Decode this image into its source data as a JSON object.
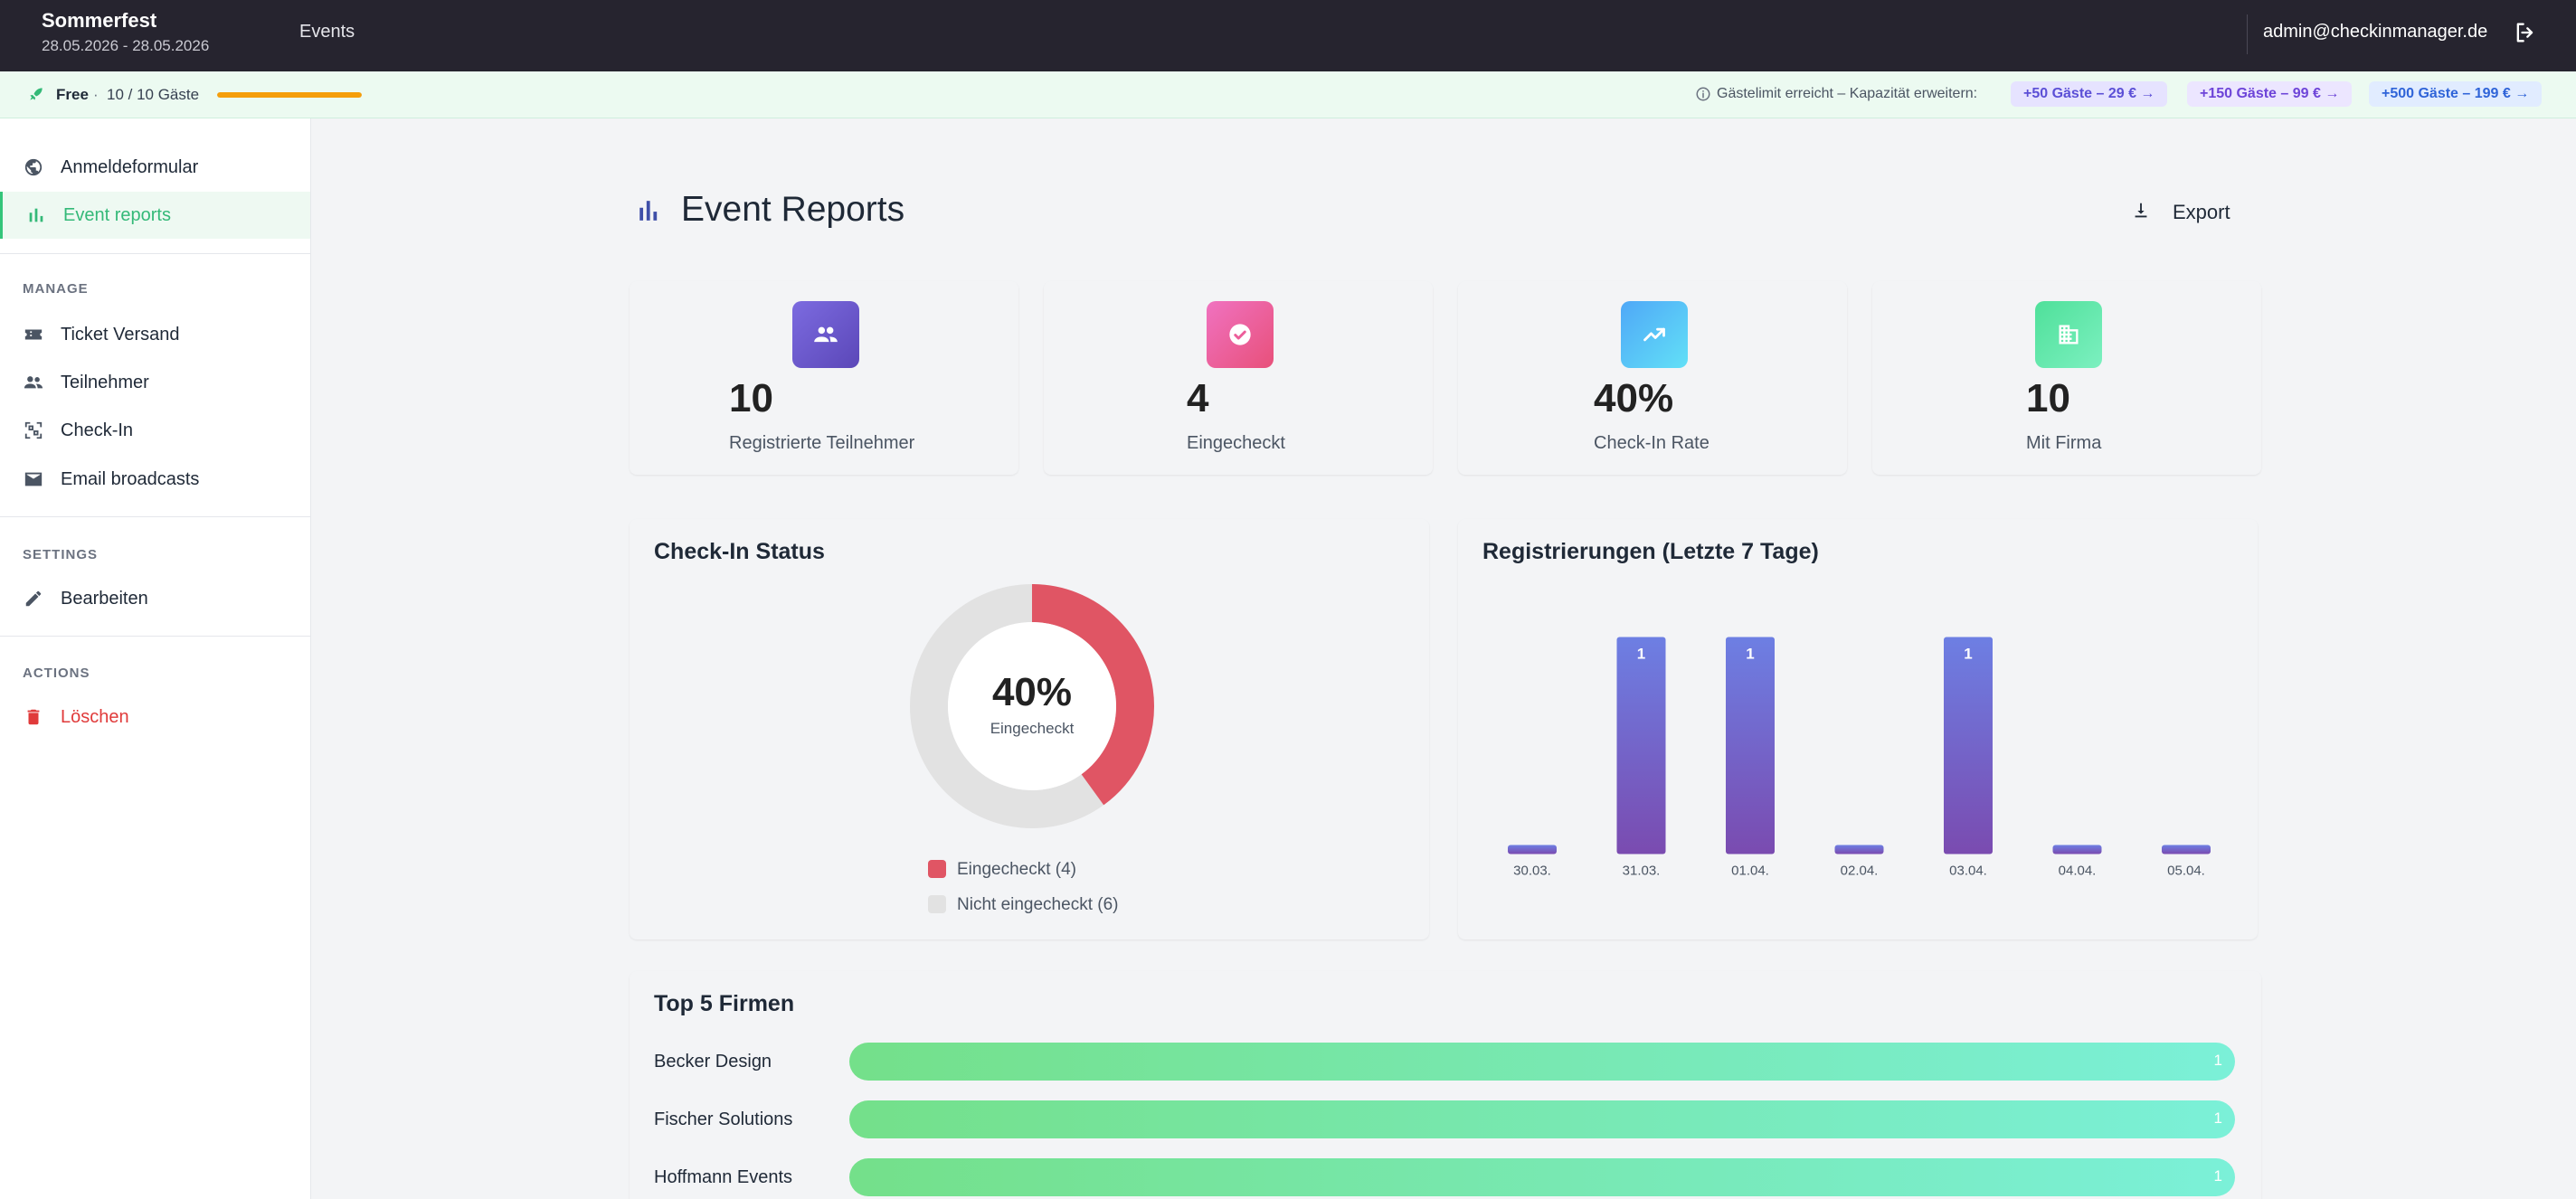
{
  "header": {
    "event_title": "Sommerfest",
    "event_dates": "28.05.2026 - 28.05.2026",
    "nav_events": "Events",
    "user_email": "admin@checkinmanager.de",
    "logout_icon": "logout-icon"
  },
  "plan": {
    "name": "Free",
    "separator": "·",
    "guest_count": "10 / 10 Gäste",
    "usage_fraction": 1.0,
    "limit_text": "Gästelimit erreicht – Kapazität erweitern:",
    "upgrades": [
      {
        "label": "+50 Gäste – 29 € →"
      },
      {
        "label": "+150 Gäste – 99 € →"
      },
      {
        "label": "+500 Gäste – 199 € →"
      }
    ],
    "colors": {
      "progress": "#f59e0b",
      "background": "#ecfaf1"
    }
  },
  "sidebar": {
    "top_items": [
      {
        "label": "Anmeldeformular",
        "icon": "globe-icon"
      },
      {
        "label": "Event reports",
        "icon": "bar-chart-icon",
        "active": true
      }
    ],
    "manage_title": "MANAGE",
    "manage_items": [
      {
        "label": "Ticket Versand",
        "icon": "ticket-icon"
      },
      {
        "label": "Teilnehmer",
        "icon": "people-icon"
      },
      {
        "label": "Check-In",
        "icon": "qr-scan-icon"
      },
      {
        "label": "Email broadcasts",
        "icon": "mail-icon"
      }
    ],
    "settings_title": "SETTINGS",
    "settings_items": [
      {
        "label": "Bearbeiten",
        "icon": "pencil-icon"
      }
    ],
    "actions_title": "ACTIONS",
    "actions_items": [
      {
        "label": "Löschen",
        "icon": "trash-icon"
      }
    ]
  },
  "main": {
    "title": "Event Reports",
    "export_label": "Export",
    "stats": [
      {
        "value": "10",
        "label": "Registrierte Teilnehmer",
        "icon": "people-icon",
        "color": "#6a5acd"
      },
      {
        "value": "4",
        "label": "Eingecheckt",
        "icon": "check-circle-icon",
        "color": "#ee6aa0"
      },
      {
        "value": "40%",
        "label": "Check-In Rate",
        "icon": "trending-up-icon",
        "color": "#4fc3f7"
      },
      {
        "value": "10",
        "label": "Mit Firma",
        "icon": "building-icon",
        "color": "#5fe0a0"
      }
    ],
    "checkin": {
      "title": "Check-In Status",
      "percent_label": "40%",
      "sub_label": "Eingecheckt",
      "fraction": 0.4,
      "legend": [
        {
          "label": "Eingecheckt (4)",
          "color": "#e05564"
        },
        {
          "label": "Nicht eingecheckt (6)",
          "color": "#e2e2e2"
        }
      ]
    },
    "registrations": {
      "title": "Registrierungen (Letzte 7 Tage)"
    },
    "top_firms": {
      "title": "Top 5 Firmen",
      "items": [
        {
          "name": "Becker Design",
          "value": "1",
          "fraction": 1.0
        },
        {
          "name": "Fischer Solutions",
          "value": "1",
          "fraction": 1.0
        },
        {
          "name": "Hoffmann Events",
          "value": "1",
          "fraction": 1.0
        }
      ]
    }
  },
  "chart_data": {
    "type": "bar",
    "title": "Registrierungen (Letzte 7 Tage)",
    "categories": [
      "30.03.",
      "31.03.",
      "01.04.",
      "02.04.",
      "03.04.",
      "04.04.",
      "05.04."
    ],
    "values": [
      0,
      1,
      1,
      0,
      1,
      0,
      0
    ],
    "data_labels": [
      "",
      "1",
      "1",
      "",
      "1",
      "",
      ""
    ],
    "ylim": [
      0,
      1
    ],
    "grid": false,
    "colors": {
      "bar_top": "#6d7fe3",
      "bar_bottom": "#7a4bb0"
    }
  }
}
